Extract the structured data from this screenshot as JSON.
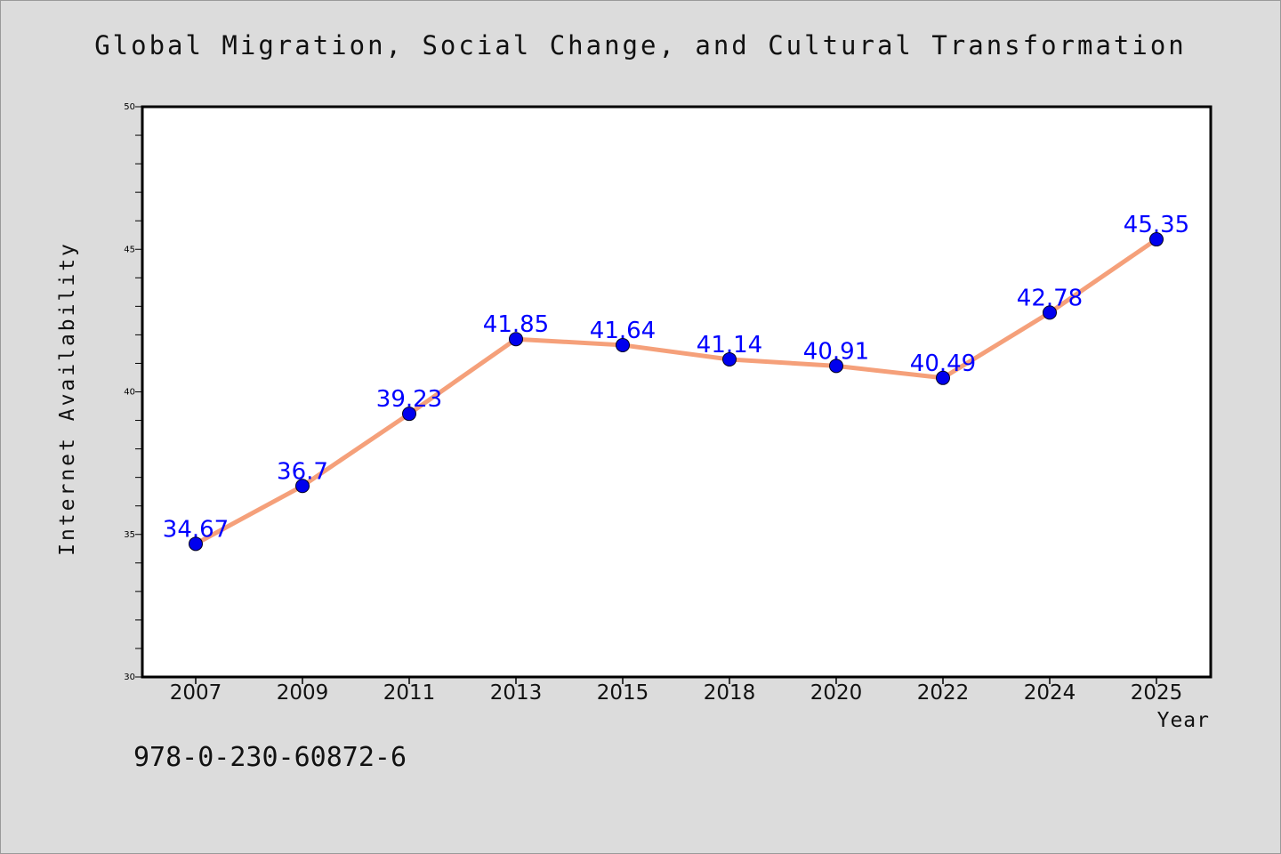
{
  "chart_data": {
    "type": "line",
    "title": "Global Migration, Social Change, and Cultural Transformation",
    "xlabel": "Year",
    "ylabel": "Internet Availability",
    "categories": [
      "2007",
      "2009",
      "2011",
      "2013",
      "2015",
      "2018",
      "2020",
      "2022",
      "2024",
      "2025"
    ],
    "series": [
      {
        "values": [
          34.67,
          36.7,
          39.23,
          41.85,
          41.64,
          41.14,
          40.91,
          40.49,
          42.78,
          45.35
        ],
        "labels": [
          "34.67",
          "36.7",
          "39.23",
          "41.85",
          "41.64",
          "41.14",
          "40.91",
          "40.49",
          "42.78",
          "45.35"
        ],
        "line_color": "#f5a07a",
        "marker_color": "#0000ee"
      }
    ],
    "ylim": [
      30,
      50
    ],
    "yticks": [
      "30",
      "35",
      "40",
      "45",
      "50"
    ],
    "label_color": "#0000ff",
    "grid": false,
    "legend": "none"
  },
  "footer": {
    "isbn": "978-0-230-60872-6"
  }
}
